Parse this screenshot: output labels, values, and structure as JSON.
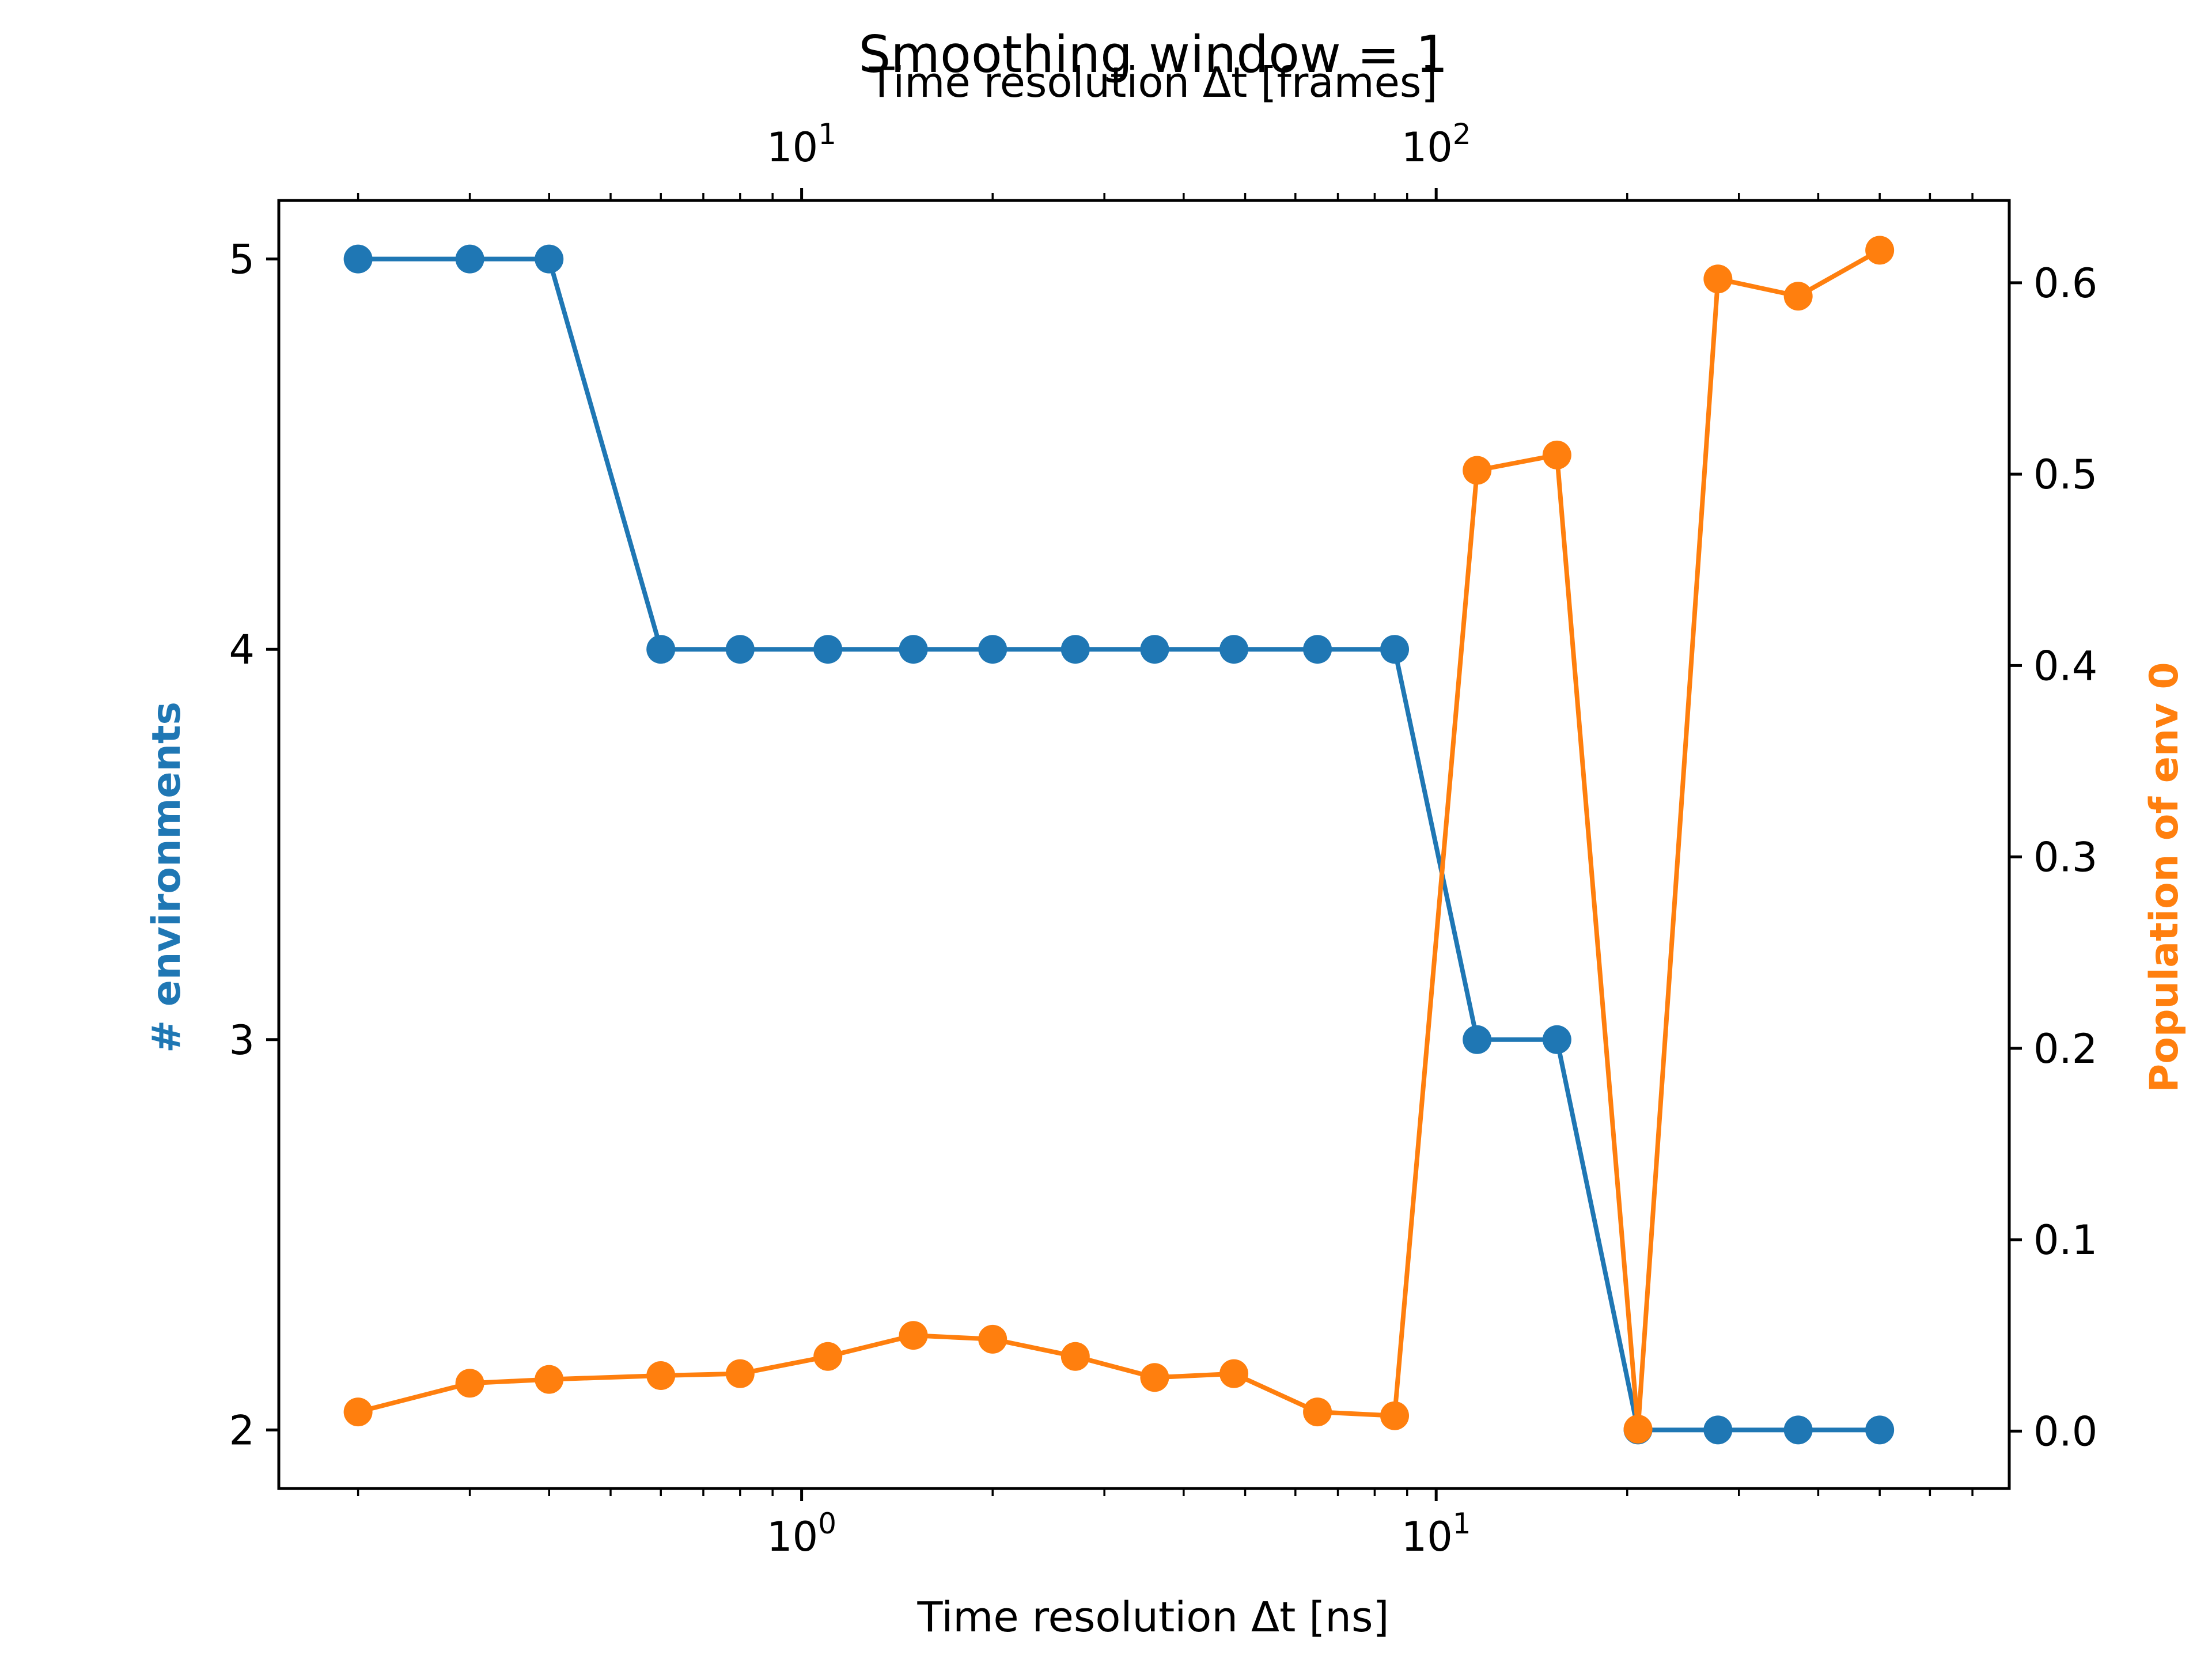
{
  "chart_data": {
    "type": "line",
    "title": "Smoothing window = 1",
    "xlabel_bottom": "Time resolution Δt [ns]",
    "xlabel_top": "Time resolution Δt [frames]",
    "ylabel_left": "# environments",
    "ylabel_right": "Population of env 0",
    "xscale": "log",
    "grid": false,
    "legend": "none",
    "xlim_ns": [
      0.15,
      80
    ],
    "ylim_left": [
      1.85,
      5.15
    ],
    "ylim_right": [
      -0.03,
      0.643
    ],
    "bottom_ticks": [
      {
        "value": 1,
        "base": "10",
        "exp": "0"
      },
      {
        "value": 10,
        "base": "10",
        "exp": "1"
      }
    ],
    "top_ticks": [
      {
        "value": 10,
        "base": "10",
        "exp": "1"
      },
      {
        "value": 100,
        "base": "10",
        "exp": "2"
      }
    ],
    "top_axis_ns_per_frame": 0.1,
    "left_ticks": [
      "2",
      "3",
      "4",
      "5"
    ],
    "right_ticks": [
      "0.0",
      "0.1",
      "0.2",
      "0.3",
      "0.4",
      "0.5",
      "0.6"
    ],
    "x": [
      0.2,
      0.3,
      0.4,
      0.6,
      0.8,
      1.1,
      1.5,
      2.0,
      2.7,
      3.6,
      4.8,
      6.5,
      8.6,
      11.6,
      15.5,
      20.8,
      27.8,
      37.2,
      50.0
    ],
    "series": [
      {
        "name": "# environments",
        "axis": "left",
        "color": "#1f77b4",
        "values": [
          5,
          5,
          5,
          4,
          4,
          4,
          4,
          4,
          4,
          4,
          4,
          4,
          4,
          3,
          3,
          2,
          2,
          2,
          2
        ]
      },
      {
        "name": "Population of env 0",
        "axis": "right",
        "color": "#ff7f0e",
        "values": [
          0.01,
          0.025,
          0.027,
          0.029,
          0.03,
          0.039,
          0.05,
          0.048,
          0.039,
          0.028,
          0.03,
          0.01,
          0.008,
          0.502,
          0.51,
          0.001,
          0.602,
          0.593,
          0.617
        ]
      }
    ]
  }
}
